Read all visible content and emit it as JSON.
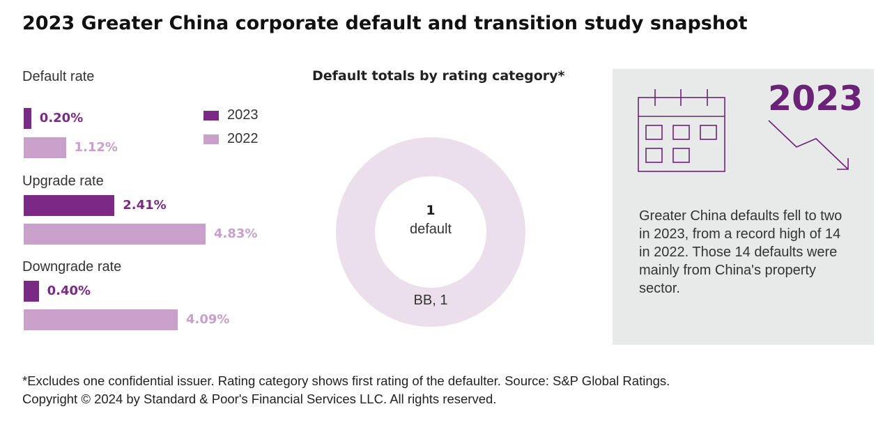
{
  "title": "2023 Greater China corporate default and transition study snapshot",
  "colors": {
    "y2023": "#7b2a84",
    "y2022": "#c8a0ca",
    "donut": "#ecdfec",
    "callout_bg": "#e8e9e9",
    "callout_accent": "#6b2378"
  },
  "chart_data": [
    {
      "type": "bar",
      "orientation": "horizontal",
      "categories": [
        "Default rate",
        "Upgrade rate",
        "Downgrade rate"
      ],
      "series": [
        {
          "name": "2023",
          "values": [
            0.2,
            2.41,
            0.4
          ],
          "labels": [
            "0.20%",
            "2.41%",
            "0.40%"
          ]
        },
        {
          "name": "2022",
          "values": [
            1.12,
            4.83,
            4.09
          ],
          "labels": [
            "1.12%",
            "4.83%",
            "4.09%"
          ]
        }
      ],
      "legend": "top-right",
      "units": "%"
    },
    {
      "type": "pie",
      "title": "Default totals by rating category*",
      "slices": [
        {
          "label": "BB",
          "value": 1,
          "text": "BB, 1"
        }
      ],
      "center_value": "1",
      "center_label": "default"
    }
  ],
  "callout": {
    "year": "2023",
    "text": "Greater China defaults fell to two in 2023, from a record high of 14 in 2022. Those 14 defaults were mainly from China's property sector.",
    "icons": [
      "calendar-icon",
      "trend-down-arrow-icon"
    ]
  },
  "footnote": {
    "line1": "*Excludes one confidential issuer. Rating category shows first rating of the defaulter. Source: S&P Global Ratings.",
    "line2": "Copyright © 2024 by Standard & Poor's Financial Services LLC. All rights reserved."
  }
}
